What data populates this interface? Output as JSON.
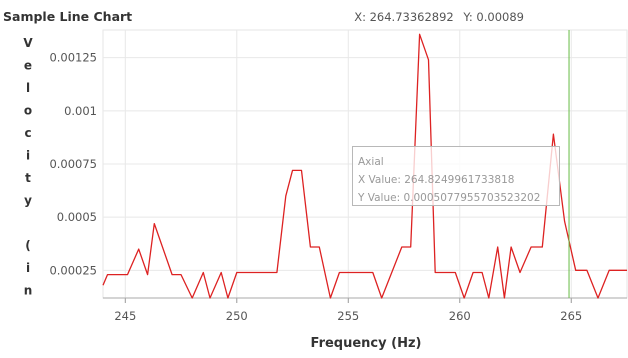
{
  "chart_data": {
    "type": "line",
    "title": "Sample Line Chart",
    "xlabel": "Frequency (Hz)",
    "ylabel": "Velocity (in/",
    "xlim": [
      244,
      267.5
    ],
    "ylim": [
      0.00012,
      0.00138
    ],
    "xticks": [
      245,
      250,
      255,
      260,
      265
    ],
    "yticks": [
      0.00025,
      0.0005,
      0.00075,
      0.001,
      0.00125
    ],
    "ytick_labels": [
      "0.00025",
      "0.0005",
      "0.00075",
      "0.001",
      "0.00125"
    ],
    "grid": true,
    "line_color": "#dd2222",
    "cursor_color": "#66bb44",
    "cursor_x": 264.9,
    "series": [
      {
        "name": "Axial",
        "x": [
          244.0,
          244.2,
          245.1,
          245.6,
          246.0,
          246.3,
          247.1,
          247.5,
          248.0,
          248.5,
          248.8,
          249.3,
          249.6,
          250.0,
          250.4,
          251.8,
          252.2,
          252.5,
          252.9,
          253.3,
          253.7,
          254.2,
          254.6,
          256.1,
          256.5,
          257.4,
          257.8,
          258.2,
          258.6,
          258.9,
          259.8,
          260.2,
          260.6,
          261.0,
          261.3,
          261.7,
          262.0,
          262.3,
          262.7,
          263.2,
          263.7,
          264.2,
          264.7,
          265.2,
          265.7,
          266.2,
          266.7,
          267.5
        ],
        "y": [
          0.00018,
          0.00023,
          0.00023,
          0.00035,
          0.00023,
          0.00047,
          0.00023,
          0.00023,
          0.00012,
          0.00024,
          0.00012,
          0.00024,
          0.00012,
          0.00024,
          0.00024,
          0.00024,
          0.0006,
          0.00072,
          0.00072,
          0.00036,
          0.00036,
          0.00012,
          0.00024,
          0.00024,
          0.00012,
          0.00036,
          0.00036,
          0.00136,
          0.00124,
          0.00024,
          0.00024,
          0.00012,
          0.00024,
          0.00024,
          0.00012,
          0.00036,
          0.00012,
          0.00036,
          0.00024,
          0.00036,
          0.00036,
          0.00089,
          0.00048,
          0.00025,
          0.00025,
          0.00012,
          0.00025,
          0.00025
        ]
      }
    ]
  },
  "readout": {
    "x_text": "X: 264.73362892",
    "y_text": "Y: 0.00089"
  },
  "tooltip": {
    "series_name": "Axial",
    "x_text": "X Value: 264.8249961733818",
    "y_text": "Y Value: 0.0005077955703523202"
  }
}
